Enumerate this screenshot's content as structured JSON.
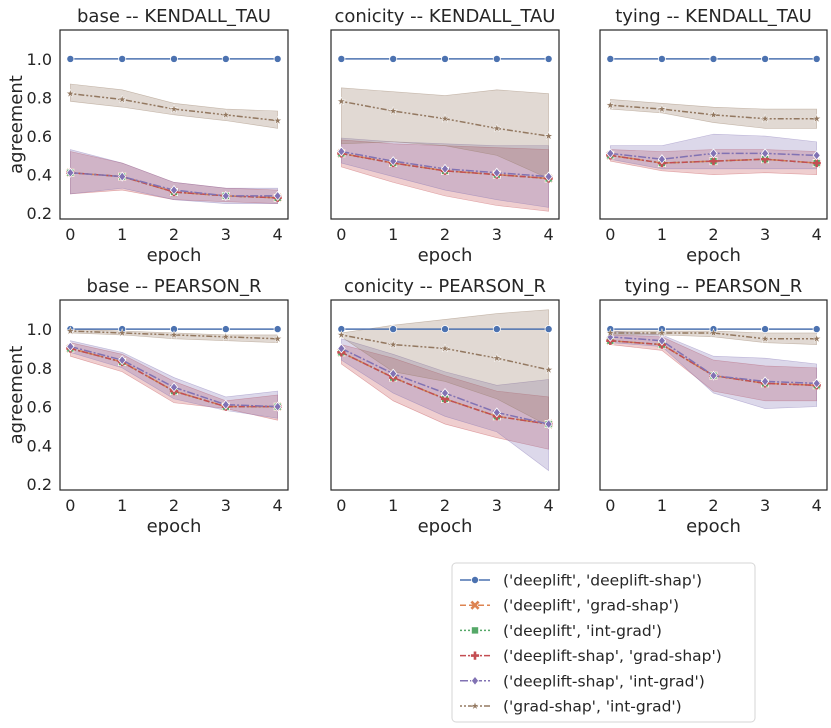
{
  "chart_data": {
    "type": "line",
    "x": [
      0,
      1,
      2,
      3,
      4
    ],
    "xlabel": "epoch",
    "ylabel": "agreement",
    "ylim": [
      0.17,
      1.15
    ],
    "yticks": [
      "0.2",
      "0.4",
      "0.6",
      "0.8",
      "1.0"
    ],
    "xticks": [
      "0",
      "1",
      "2",
      "3",
      "4"
    ],
    "legend_position": "bottom-right",
    "series_styles": [
      {
        "name": "('deeplift', 'deeplift-shap')",
        "color": "#4c72b0",
        "dash": "",
        "marker": "circle"
      },
      {
        "name": "('deeplift', 'grad-shap')",
        "color": "#dd8452",
        "dash": "6 3",
        "marker": "x"
      },
      {
        "name": "('deeplift', 'int-grad')",
        "color": "#55a868",
        "dash": "2 2",
        "marker": "square"
      },
      {
        "name": "('deeplift-shap', 'grad-shap')",
        "color": "#c44e52",
        "dash": "6 2 2 2",
        "marker": "plus"
      },
      {
        "name": "('deeplift-shap', 'int-grad')",
        "color": "#8172b3",
        "dash": "8 2 2 2",
        "marker": "diamond"
      },
      {
        "name": "('grad-shap', 'int-grad')",
        "color": "#937860",
        "dash": "2 2 2 2 6 2",
        "marker": "star"
      }
    ],
    "panels": [
      {
        "title": "base -- KENDALL_TAU",
        "series": [
          {
            "values": [
              1.0,
              1.0,
              1.0,
              1.0,
              1.0
            ]
          },
          {
            "values": [
              0.41,
              0.39,
              0.31,
              0.29,
              0.28
            ]
          },
          {
            "values": [
              0.41,
              0.39,
              0.31,
              0.29,
              0.28
            ]
          },
          {
            "values": [
              0.41,
              0.39,
              0.31,
              0.29,
              0.28
            ]
          },
          {
            "values": [
              0.41,
              0.39,
              0.32,
              0.29,
              0.29
            ]
          },
          {
            "values": [
              0.82,
              0.79,
              0.74,
              0.71,
              0.68
            ]
          }
        ],
        "bands": [
          {
            "color": "#c44e52",
            "lower": [
              0.3,
              0.32,
              0.27,
              0.26,
              0.25
            ],
            "upper": [
              0.52,
              0.46,
              0.36,
              0.33,
              0.32
            ]
          },
          {
            "color": "#8172b3",
            "lower": [
              0.3,
              0.33,
              0.27,
              0.25,
              0.25
            ],
            "upper": [
              0.53,
              0.46,
              0.36,
              0.33,
              0.33
            ]
          },
          {
            "color": "#937860",
            "lower": [
              0.78,
              0.75,
              0.71,
              0.68,
              0.64
            ],
            "upper": [
              0.87,
              0.84,
              0.77,
              0.74,
              0.73
            ]
          }
        ]
      },
      {
        "title": "conicity -- KENDALL_TAU",
        "series": [
          {
            "values": [
              1.0,
              1.0,
              1.0,
              1.0,
              1.0
            ]
          },
          {
            "values": [
              0.51,
              0.46,
              0.42,
              0.4,
              0.38
            ]
          },
          {
            "values": [
              0.51,
              0.46,
              0.42,
              0.4,
              0.38
            ]
          },
          {
            "values": [
              0.51,
              0.46,
              0.42,
              0.4,
              0.38
            ]
          },
          {
            "values": [
              0.52,
              0.47,
              0.43,
              0.41,
              0.39
            ]
          },
          {
            "values": [
              0.78,
              0.73,
              0.69,
              0.64,
              0.6
            ]
          }
        ],
        "bands": [
          {
            "color": "#c44e52",
            "lower": [
              0.44,
              0.36,
              0.29,
              0.24,
              0.21
            ],
            "upper": [
              0.58,
              0.56,
              0.55,
              0.54,
              0.53
            ]
          },
          {
            "color": "#8172b3",
            "lower": [
              0.46,
              0.39,
              0.32,
              0.27,
              0.23
            ],
            "upper": [
              0.59,
              0.57,
              0.56,
              0.55,
              0.55
            ]
          },
          {
            "color": "#937860",
            "lower": [
              0.56,
              0.57,
              0.55,
              0.5,
              0.38
            ],
            "upper": [
              0.85,
              0.83,
              0.81,
              0.84,
              0.82
            ]
          }
        ]
      },
      {
        "title": "tying -- KENDALL_TAU",
        "series": [
          {
            "values": [
              1.0,
              1.0,
              1.0,
              1.0,
              1.0
            ]
          },
          {
            "values": [
              0.5,
              0.46,
              0.47,
              0.48,
              0.46
            ]
          },
          {
            "values": [
              0.5,
              0.46,
              0.47,
              0.48,
              0.46
            ]
          },
          {
            "values": [
              0.5,
              0.46,
              0.47,
              0.48,
              0.46
            ]
          },
          {
            "values": [
              0.51,
              0.48,
              0.51,
              0.51,
              0.5
            ]
          },
          {
            "values": [
              0.76,
              0.74,
              0.71,
              0.69,
              0.69
            ]
          }
        ],
        "bands": [
          {
            "color": "#c44e52",
            "lower": [
              0.47,
              0.42,
              0.4,
              0.41,
              0.4
            ],
            "upper": [
              0.53,
              0.52,
              0.53,
              0.53,
              0.52
            ]
          },
          {
            "color": "#8172b3",
            "lower": [
              0.48,
              0.43,
              0.43,
              0.43,
              0.43
            ],
            "upper": [
              0.55,
              0.55,
              0.61,
              0.6,
              0.57
            ]
          },
          {
            "color": "#937860",
            "lower": [
              0.74,
              0.72,
              0.67,
              0.64,
              0.64
            ],
            "upper": [
              0.79,
              0.77,
              0.75,
              0.74,
              0.74
            ]
          }
        ]
      },
      {
        "title": "base -- PEARSON_R",
        "series": [
          {
            "values": [
              1.0,
              1.0,
              1.0,
              1.0,
              1.0
            ]
          },
          {
            "values": [
              0.9,
              0.83,
              0.68,
              0.6,
              0.6
            ]
          },
          {
            "values": [
              0.9,
              0.83,
              0.68,
              0.6,
              0.6
            ]
          },
          {
            "values": [
              0.9,
              0.83,
              0.68,
              0.6,
              0.6
            ]
          },
          {
            "values": [
              0.91,
              0.84,
              0.7,
              0.61,
              0.6
            ]
          },
          {
            "values": [
              0.99,
              0.98,
              0.97,
              0.96,
              0.95
            ]
          }
        ],
        "bands": [
          {
            "color": "#c44e52",
            "lower": [
              0.86,
              0.78,
              0.62,
              0.59,
              0.53
            ],
            "upper": [
              0.93,
              0.87,
              0.73,
              0.63,
              0.66
            ]
          },
          {
            "color": "#8172b3",
            "lower": [
              0.88,
              0.8,
              0.64,
              0.58,
              0.54
            ],
            "upper": [
              0.94,
              0.88,
              0.75,
              0.65,
              0.68
            ]
          },
          {
            "color": "#937860",
            "lower": [
              0.98,
              0.97,
              0.95,
              0.94,
              0.93
            ],
            "upper": [
              1.0,
              0.99,
              0.98,
              0.97,
              0.97
            ]
          }
        ]
      },
      {
        "title": "conicity -- PEARSON_R",
        "series": [
          {
            "values": [
              1.0,
              1.0,
              1.0,
              1.0,
              1.0
            ]
          },
          {
            "values": [
              0.88,
              0.75,
              0.64,
              0.55,
              0.51
            ]
          },
          {
            "values": [
              0.88,
              0.75,
              0.64,
              0.55,
              0.51
            ]
          },
          {
            "values": [
              0.88,
              0.75,
              0.64,
              0.55,
              0.51
            ]
          },
          {
            "values": [
              0.9,
              0.77,
              0.67,
              0.57,
              0.51
            ]
          },
          {
            "values": [
              0.97,
              0.92,
              0.9,
              0.85,
              0.79
            ]
          }
        ],
        "bands": [
          {
            "color": "#c44e52",
            "lower": [
              0.82,
              0.63,
              0.51,
              0.44,
              0.38
            ],
            "upper": [
              0.92,
              0.85,
              0.76,
              0.68,
              0.65
            ]
          },
          {
            "color": "#8172b3",
            "lower": [
              0.84,
              0.67,
              0.55,
              0.47,
              0.27
            ],
            "upper": [
              0.95,
              0.87,
              0.78,
              0.71,
              0.74
            ]
          },
          {
            "color": "#937860",
            "lower": [
              0.96,
              0.78,
              0.73,
              0.64,
              0.5
            ],
            "upper": [
              0.98,
              1.02,
              1.05,
              1.08,
              1.1
            ]
          }
        ]
      },
      {
        "title": "tying -- PEARSON_R",
        "series": [
          {
            "values": [
              1.0,
              1.0,
              1.0,
              1.0,
              1.0
            ]
          },
          {
            "values": [
              0.94,
              0.92,
              0.76,
              0.72,
              0.71
            ]
          },
          {
            "values": [
              0.94,
              0.92,
              0.76,
              0.72,
              0.71
            ]
          },
          {
            "values": [
              0.94,
              0.92,
              0.76,
              0.72,
              0.71
            ]
          },
          {
            "values": [
              0.96,
              0.94,
              0.76,
              0.73,
              0.72
            ]
          },
          {
            "values": [
              0.98,
              0.98,
              0.98,
              0.95,
              0.95
            ]
          }
        ],
        "bands": [
          {
            "color": "#c44e52",
            "lower": [
              0.92,
              0.89,
              0.68,
              0.63,
              0.63
            ],
            "upper": [
              0.97,
              0.96,
              0.84,
              0.81,
              0.8
            ]
          },
          {
            "color": "#8172b3",
            "lower": [
              0.93,
              0.91,
              0.67,
              0.59,
              0.6
            ],
            "upper": [
              0.99,
              0.97,
              0.86,
              0.85,
              0.82
            ]
          },
          {
            "color": "#937860",
            "lower": [
              0.97,
              0.97,
              0.96,
              0.93,
              0.92
            ],
            "upper": [
              0.99,
              0.99,
              0.99,
              0.98,
              0.98
            ]
          }
        ]
      }
    ]
  }
}
